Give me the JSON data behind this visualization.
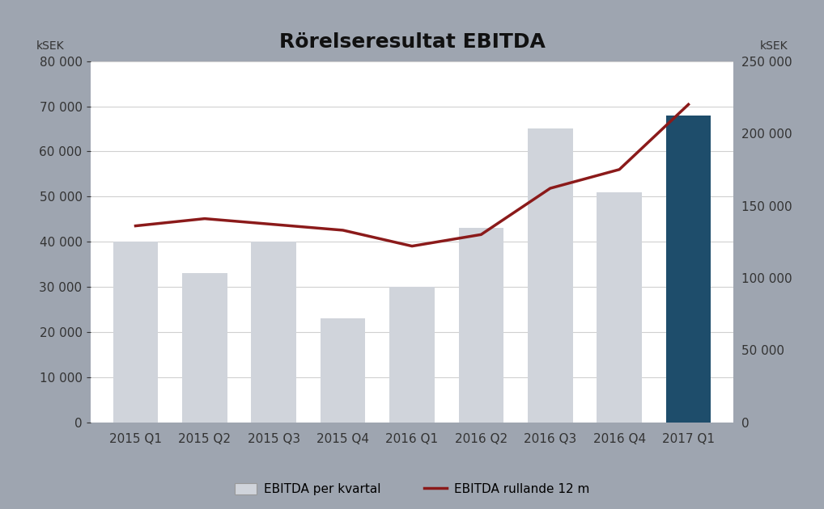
{
  "title": "Rörelseresultat EBITDA",
  "categories": [
    "2015 Q1",
    "2015 Q2",
    "2015 Q3",
    "2015 Q4",
    "2016 Q1",
    "2016 Q2",
    "2016 Q3",
    "2016 Q4",
    "2017 Q1"
  ],
  "bar_values": [
    40000,
    33000,
    40000,
    23000,
    30000,
    43000,
    65000,
    51000,
    68000
  ],
  "bar_colors": [
    "#d0d4db",
    "#d0d4db",
    "#d0d4db",
    "#d0d4db",
    "#d0d4db",
    "#d0d4db",
    "#d0d4db",
    "#d0d4db",
    "#1e4d6b"
  ],
  "line_values": [
    136000,
    141000,
    137000,
    133000,
    122000,
    130000,
    162000,
    175000,
    220000
  ],
  "left_ylim": [
    0,
    80000
  ],
  "right_ylim": [
    0,
    250000
  ],
  "left_yticks": [
    0,
    10000,
    20000,
    30000,
    40000,
    50000,
    60000,
    70000,
    80000
  ],
  "right_yticks": [
    0,
    50000,
    100000,
    150000,
    200000,
    250000
  ],
  "left_ylabel": "kSEK",
  "right_ylabel": "kSEK",
  "bar_color_light": "#d0d4db",
  "bar_color_dark": "#1e4d6b",
  "line_color": "#8b1a1a",
  "background_color": "#9ea5b0",
  "plot_bg_color": "#ffffff",
  "legend_bar_label": "EBITDA per kvartal",
  "legend_line_label": "EBITDA rullande 12 m",
  "title_fontsize": 18,
  "axis_label_fontsize": 10,
  "tick_fontsize": 11
}
